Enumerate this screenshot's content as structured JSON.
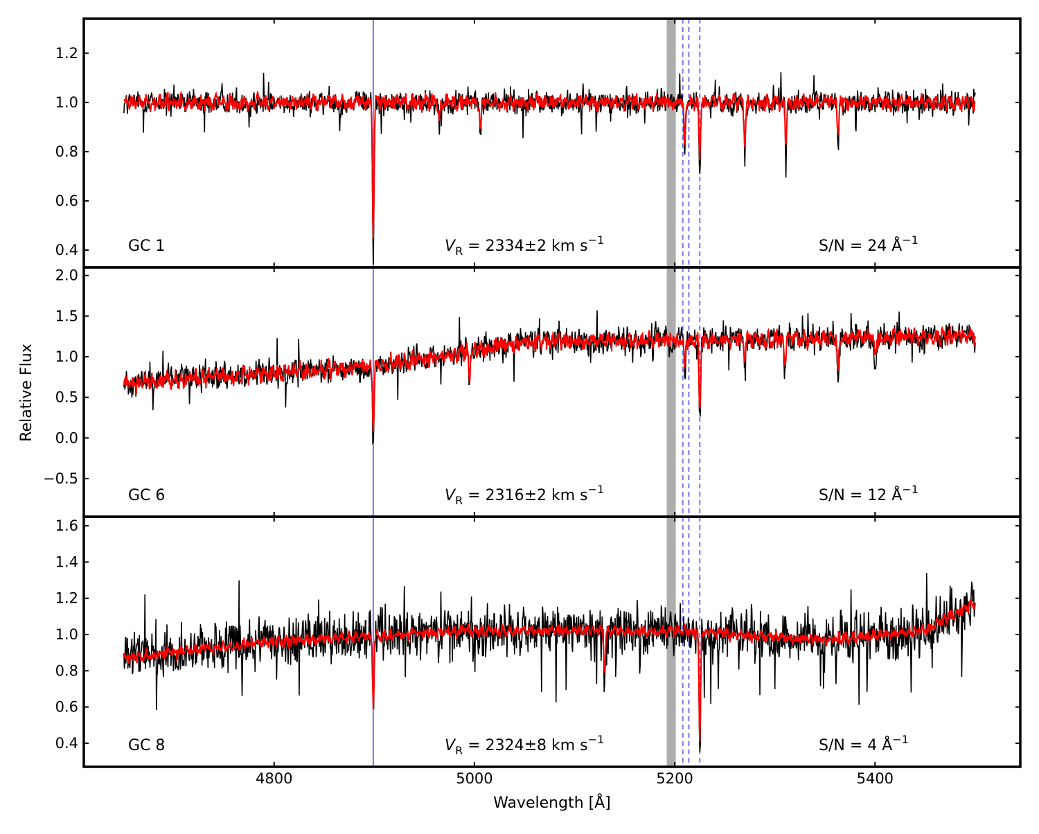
{
  "chart_data": {
    "type": "line",
    "xlabel": "Wavelength [Å]",
    "ylabel": "Relative Flux",
    "xlim": [
      4610,
      5545
    ],
    "x_ticks": [
      4800,
      5000,
      5200,
      5400
    ],
    "x_tick_labels": [
      "4800",
      "5000",
      "5200",
      "5400"
    ],
    "data_range": [
      4650,
      5500
    ],
    "reference_line_solid": 4899,
    "reference_lines_dashed": [
      5208,
      5214,
      5225
    ],
    "shaded_band": [
      5192,
      5201
    ],
    "colors": {
      "observed": "#000000",
      "model": "#ff0000",
      "reference_line": "#7777ee",
      "band": "#999999"
    },
    "panels": [
      {
        "label": "GC 1",
        "velocity_prefix": "V",
        "velocity_subscript": "R",
        "velocity_value": " = 2334±2 km s",
        "velocity_exponent": "−1",
        "sn_text": "S/N = 24 Å",
        "sn_exponent": "−1",
        "ylim": [
          0.33,
          1.34
        ],
        "y_ticks": [
          0.4,
          0.6,
          0.8,
          1.0,
          1.2
        ],
        "y_tick_labels": [
          "0.4",
          "0.6",
          "0.8",
          "1.0",
          "1.2"
        ],
        "trend": {
          "x": [
            4650,
            5500
          ],
          "y": [
            1.0,
            1.0
          ]
        },
        "noise_amplitude": 0.06,
        "model_noise": 0.018,
        "absorption_lines": [
          [
            4899,
            0.64
          ],
          [
            4965,
            0.1
          ],
          [
            5006,
            0.12
          ],
          [
            5210,
            0.2
          ],
          [
            5225,
            0.28
          ],
          [
            5270,
            0.22
          ],
          [
            5311,
            0.2
          ],
          [
            5363,
            0.2
          ]
        ],
        "series": [
          {
            "name": "observed",
            "color": "#000000"
          },
          {
            "name": "model",
            "color": "#ff0000"
          }
        ]
      },
      {
        "label": "GC 6",
        "velocity_prefix": "V",
        "velocity_subscript": "R",
        "velocity_value": " = 2316±2 km s",
        "velocity_exponent": "−1",
        "sn_text": "S/N = 12 Å",
        "sn_exponent": "−1",
        "ylim": [
          -0.97,
          2.1
        ],
        "y_ticks": [
          -0.5,
          0.0,
          0.5,
          1.0,
          1.5,
          2.0
        ],
        "y_tick_labels": [
          "−0.5",
          "0.0",
          "0.5",
          "1.0",
          "1.5",
          "2.0"
        ],
        "trend": {
          "x": [
            4650,
            4900,
            5050,
            5500
          ],
          "y": [
            0.68,
            0.88,
            1.18,
            1.25
          ]
        },
        "noise_amplitude": 0.2,
        "model_noise": 0.06,
        "absorption_lines": [
          [
            4899,
            0.95
          ],
          [
            4995,
            0.45
          ],
          [
            5210,
            0.4
          ],
          [
            5225,
            1.05
          ],
          [
            5270,
            0.35
          ],
          [
            5310,
            0.4
          ],
          [
            5363,
            0.5
          ],
          [
            5400,
            0.3
          ]
        ],
        "series": [
          {
            "name": "observed",
            "color": "#000000"
          },
          {
            "name": "model",
            "color": "#ff0000"
          }
        ]
      },
      {
        "label": "GC 8",
        "velocity_prefix": "V",
        "velocity_subscript": "R",
        "velocity_value": " = 2324±8 km s",
        "velocity_exponent": "−1",
        "sn_text": "S/N = 4 Å",
        "sn_exponent": "−1",
        "ylim": [
          0.27,
          1.65
        ],
        "y_ticks": [
          0.4,
          0.6,
          0.8,
          1.0,
          1.2,
          1.4,
          1.6
        ],
        "y_tick_labels": [
          "0.4",
          "0.6",
          "0.8",
          "1.0",
          "1.2",
          "1.4",
          "1.6"
        ],
        "trend": {
          "x": [
            4650,
            4800,
            4990,
            5200,
            5350,
            5450,
            5500
          ],
          "y": [
            0.87,
            0.96,
            1.02,
            1.02,
            0.97,
            1.02,
            1.18
          ]
        },
        "noise_amplitude": 0.17,
        "model_noise": 0.018,
        "absorption_lines": [
          [
            4899,
            0.45
          ],
          [
            5225,
            0.7
          ],
          [
            5130,
            0.25
          ]
        ],
        "series": [
          {
            "name": "observed",
            "color": "#000000"
          },
          {
            "name": "model",
            "color": "#ff0000"
          }
        ]
      }
    ]
  }
}
